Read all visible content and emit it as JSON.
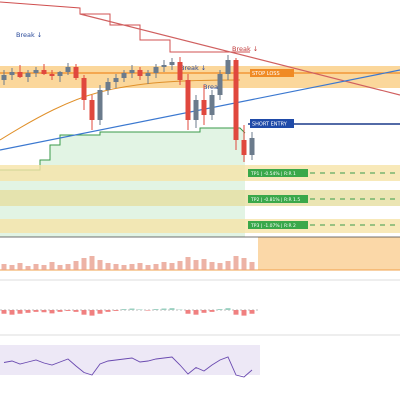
{
  "chart_data": {
    "type": "candlestick",
    "open": [
      190,
      195,
      198,
      193,
      197,
      200,
      196,
      194,
      198,
      203,
      192,
      170,
      150,
      180,
      188,
      192,
      197,
      200,
      194,
      197,
      203,
      205,
      208,
      190,
      150,
      170,
      155,
      175,
      196,
      210,
      130,
      115
    ],
    "high": [
      200,
      202,
      205,
      200,
      203,
      206,
      200,
      199,
      207,
      206,
      195,
      175,
      185,
      192,
      196,
      200,
      205,
      203,
      200,
      206,
      210,
      212,
      213,
      196,
      175,
      185,
      180,
      200,
      215,
      212,
      145,
      138
    ],
    "low": [
      185,
      190,
      192,
      188,
      193,
      195,
      190,
      188,
      195,
      190,
      160,
      140,
      145,
      175,
      182,
      188,
      192,
      190,
      186,
      192,
      198,
      200,
      185,
      140,
      142,
      145,
      150,
      170,
      190,
      120,
      108,
      110
    ],
    "close": [
      195,
      198,
      193,
      197,
      200,
      196,
      194,
      198,
      203,
      192,
      170,
      150,
      180,
      188,
      192,
      197,
      200,
      194,
      197,
      203,
      205,
      208,
      190,
      150,
      170,
      155,
      175,
      196,
      210,
      130,
      115,
      132
    ],
    "up_color": "#6b7b8c",
    "down_color": "#e0483e",
    "ylim": [
      0,
      270
    ],
    "volume": [
      6,
      5,
      7,
      4,
      6,
      5,
      8,
      5,
      6,
      9,
      12,
      14,
      10,
      7,
      6,
      5,
      6,
      7,
      5,
      6,
      8,
      7,
      9,
      13,
      10,
      11,
      8,
      7,
      9,
      14,
      12,
      8
    ],
    "volume_ylim": [
      0,
      40
    ],
    "volume_color": "#e8a090",
    "macd_hist": [
      -2,
      -2.5,
      -2,
      -1.5,
      -1,
      -1.2,
      -1.8,
      -1,
      -0.5,
      -1,
      -2.5,
      -3,
      -2,
      -1,
      -0.5,
      0.5,
      0.8,
      0.3,
      -0.3,
      0.5,
      0.8,
      1,
      0.2,
      -2,
      -2.5,
      -1.5,
      -1,
      0.5,
      1,
      -2.5,
      -3,
      -2
    ],
    "macd_ylim": [
      -8,
      8
    ],
    "rsi": [
      55,
      58,
      52,
      56,
      60,
      54,
      50,
      56,
      62,
      48,
      35,
      30,
      52,
      58,
      60,
      62,
      64,
      56,
      58,
      62,
      64,
      66,
      50,
      32,
      45,
      38,
      50,
      60,
      66,
      30,
      26,
      40
    ],
    "rsi_ylim": [
      0,
      100
    ],
    "annotations": [
      "Break ↓",
      "Break ↓",
      "Break ↓",
      "Break"
    ],
    "stop_loss": "STOP LOSS",
    "short_entry": "SHORT ENTRY",
    "targets": [
      "TP1 | -0.54% | R:R 1",
      "TP2 | -0.81% | R:R 1.5",
      "TP3 | -1.07% | R:R 2"
    ]
  }
}
